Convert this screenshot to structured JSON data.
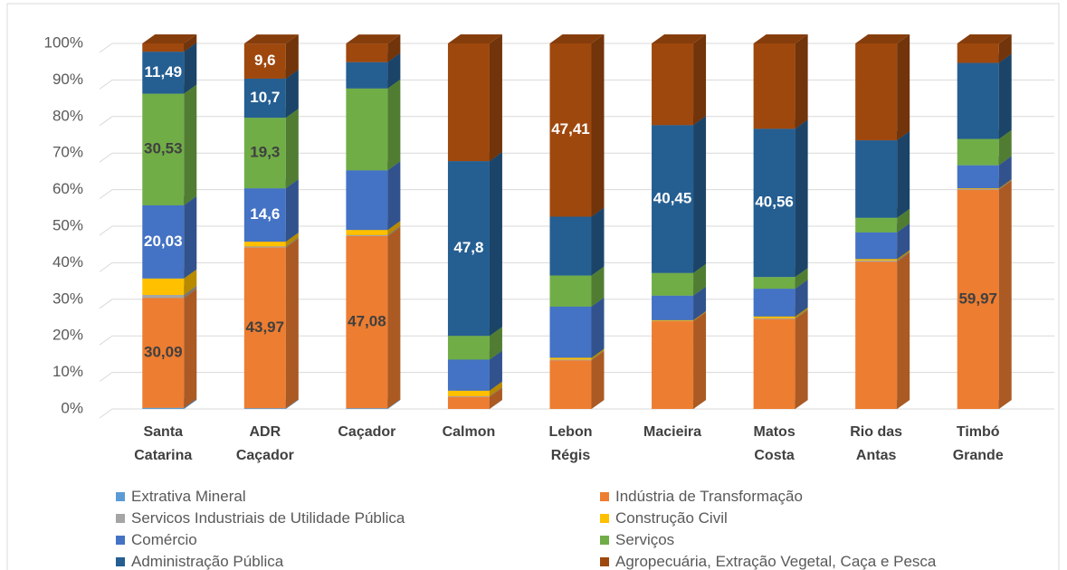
{
  "chart_data": {
    "type": "stacked_bar_3d",
    "categories": [
      "Santa Catarina",
      "ADR Caçador",
      "Caçador",
      "Calmon",
      "Lebon Régis",
      "Macieira",
      "Matos Costa",
      "Rio das Antas",
      "Timbó Grande"
    ],
    "series": [
      {
        "name": "Extrativa Mineral",
        "color": "#5b9bd5",
        "values": [
          0.3,
          0.2,
          0.2,
          0,
          0,
          0,
          0,
          0,
          0
        ]
      },
      {
        "name": "Indústria de Transformação",
        "color": "#ed7d31",
        "values": [
          30.09,
          43.97,
          47.08,
          3.3,
          13.3,
          24,
          24.6,
          40.3,
          59.97
        ],
        "value_labels": [
          "30,09",
          "43,97",
          "47,08",
          null,
          null,
          null,
          null,
          null,
          "59,97"
        ]
      },
      {
        "name": "Servicos Industriais de Utilidade Pública",
        "color": "#a5a5a5",
        "values": [
          0.8,
          0.3,
          0.3,
          0.2,
          0.2,
          0.1,
          0.2,
          0.3,
          0.2
        ]
      },
      {
        "name": "Construção Civil",
        "color": "#ffc000",
        "values": [
          4.5,
          1.3,
          1.4,
          1.5,
          0.5,
          0.2,
          0.5,
          0.4,
          0.2
        ]
      },
      {
        "name": "Comércio",
        "color": "#4472c4",
        "values": [
          20.03,
          14.6,
          16.3,
          8.5,
          14,
          6.7,
          7.6,
          7.3,
          6.3
        ],
        "value_labels": [
          "20,03",
          "14,6",
          null,
          null,
          null,
          null,
          null,
          null,
          null
        ]
      },
      {
        "name": "Serviços",
        "color": "#70ad47",
        "values": [
          30.53,
          19.3,
          22.4,
          6.5,
          8.5,
          6.2,
          3.2,
          4,
          7.2
        ],
        "value_labels": [
          "30,53",
          "19,3",
          null,
          null,
          null,
          null,
          null,
          null,
          null
        ]
      },
      {
        "name": "Administração Pública",
        "color": "#255e91",
        "values": [
          11.49,
          10.7,
          7.2,
          47.8,
          16.1,
          40.45,
          40.56,
          21.2,
          20.8
        ],
        "value_labels": [
          "11,49",
          "10,7",
          null,
          "47,8",
          null,
          "40,45",
          "40,56",
          null,
          null
        ]
      },
      {
        "name": "Agropecuária, Extração Vegetal, Caça e Pesca",
        "color": "#9e480e",
        "values": [
          2.26,
          9.6,
          5.1,
          32.2,
          47.41,
          22.35,
          23.34,
          26.5,
          5.33
        ],
        "value_labels": [
          null,
          "9,6",
          null,
          null,
          "47,41",
          null,
          null,
          null,
          null
        ]
      }
    ],
    "ylim": [
      0,
      100
    ],
    "yticks": [
      {
        "value": 0,
        "label": "0%"
      },
      {
        "value": 10,
        "label": "10%"
      },
      {
        "value": 20,
        "label": "20%"
      },
      {
        "value": 30,
        "label": "30%"
      },
      {
        "value": 40,
        "label": "40%"
      },
      {
        "value": 50,
        "label": "50%"
      },
      {
        "value": 60,
        "label": "60%"
      },
      {
        "value": 70,
        "label": "70%"
      },
      {
        "value": 80,
        "label": "80%"
      },
      {
        "value": 90,
        "label": "90%"
      },
      {
        "value": 100,
        "label": "100%"
      }
    ],
    "grid": true,
    "legend": "bottom"
  }
}
